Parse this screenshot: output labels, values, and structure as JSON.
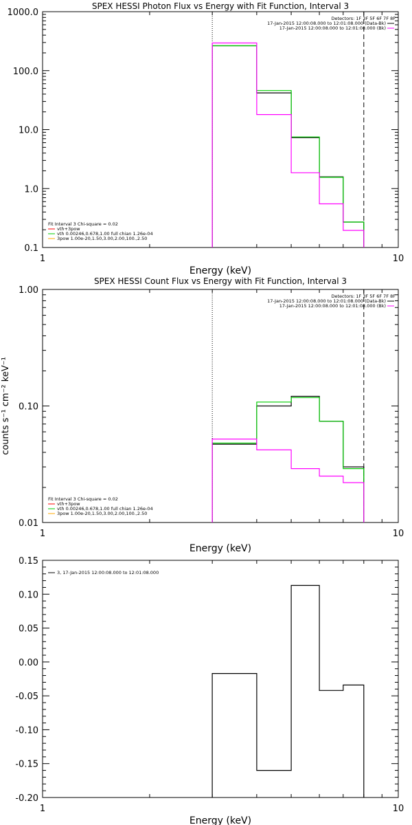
{
  "chart_data": [
    {
      "type": "line",
      "title": "SPEX HESSI Photon Flux vs Energy with Fit Function, Interval 3",
      "xlabel": "Energy (keV)",
      "ylabel": "",
      "xscale": "log",
      "yscale": "log",
      "xlim": [
        1,
        10
      ],
      "ylim": [
        0.1,
        1000
      ],
      "x_tick_labels": [
        "1",
        "10"
      ],
      "y_tick_labels": [
        "1000.0",
        "100.0",
        "10.0",
        "1.0",
        "0.1"
      ],
      "legend_tr": {
        "header": "Detectors: 1F 3F 5F 6F 7F 8F",
        "entries": [
          {
            "text": "17-Jan-2015 12:00:08.000 to 12:01:08.000 (Data-Bk)",
            "color": "#000000"
          },
          {
            "text": "17-Jan-2015 12:00:08.000 to 12:01:08.000 (Bk)",
            "color": "#ff00ff"
          }
        ]
      },
      "legend_bl": {
        "header": "Fit Interval 3   Chi-square = 0.02",
        "entries": [
          {
            "text": "vth+3pow",
            "color": "#ff0000"
          },
          {
            "text": "vth 0.00246,0.678,1.00  full chian 1.26e-04",
            "color": "#00cc00"
          },
          {
            "text": "3pow 1.00e-20,1.50,3.00,2.00,100.,2.50",
            "color": "#ffaa00"
          }
        ]
      },
      "markers": [
        {
          "x": 3.0,
          "style": "dotted"
        },
        {
          "x": 8.0,
          "style": "dashed"
        }
      ],
      "bin_edges": [
        3,
        4,
        5,
        6,
        7,
        8
      ],
      "series": [
        {
          "color": "#000000",
          "values": [
            265,
            42,
            7.3,
            1.58,
            0.27
          ]
        },
        {
          "color": "#00cc00",
          "values": [
            265,
            46,
            7.5,
            1.55,
            0.27
          ]
        },
        {
          "color": "#ff00ff",
          "values": [
            295,
            18,
            1.85,
            0.55,
            0.195
          ]
        }
      ]
    },
    {
      "type": "line",
      "title": "SPEX HESSI Count Flux vs Energy with Fit Function, Interval 3",
      "xlabel": "Energy (keV)",
      "ylabel": "counts s⁻¹ cm⁻² keV⁻¹",
      "xscale": "log",
      "yscale": "log",
      "xlim": [
        1,
        10
      ],
      "ylim": [
        0.01,
        1.0
      ],
      "x_tick_labels": [
        "1",
        "10"
      ],
      "y_tick_labels": [
        "1.00",
        "0.10",
        "0.01"
      ],
      "legend_tr": {
        "header": "Detectors: 1F 3F 5F 6F 7F 8F",
        "entries": [
          {
            "text": "17-Jan-2015 12:00:08.000 to 12:01:08.000 (Data-Bk)",
            "color": "#000000"
          },
          {
            "text": "17-Jan-2015 12:00:08.000 to 12:01:08.000 (Bk)",
            "color": "#ff00ff"
          }
        ]
      },
      "legend_bl": {
        "header": "Fit Interval 3   Chi-square = 0.02",
        "entries": [
          {
            "text": "vth+3pow",
            "color": "#ff0000"
          },
          {
            "text": "vth 0.00246,0.678,1.00  full chian 1.26e-04",
            "color": "#00cc00"
          },
          {
            "text": "3pow 1.00e-20,1.50,3.00,2.00,100.,2.50",
            "color": "#ffaa00"
          }
        ]
      },
      "markers": [
        {
          "x": 3.0,
          "style": "dotted"
        },
        {
          "x": 8.0,
          "style": "dashed"
        }
      ],
      "bin_edges": [
        3,
        4,
        5,
        6,
        7,
        8
      ],
      "series": [
        {
          "color": "#000000",
          "values": [
            0.047,
            0.1,
            0.121,
            0.074,
            0.03
          ]
        },
        {
          "color": "#00cc00",
          "values": [
            0.048,
            0.108,
            0.118,
            0.074,
            0.029
          ]
        },
        {
          "color": "#ff00ff",
          "values": [
            0.052,
            0.042,
            0.029,
            0.025,
            0.022
          ]
        }
      ]
    },
    {
      "type": "line",
      "title": "",
      "xlabel": "Energy (keV)",
      "ylabel": "",
      "xscale": "log",
      "yscale": "linear",
      "xlim": [
        1,
        10
      ],
      "ylim": [
        -0.2,
        0.15
      ],
      "x_tick_labels": [
        "1",
        "10"
      ],
      "y_ticks": [
        0.15,
        0.1,
        0.05,
        0.0,
        -0.05,
        -0.1,
        -0.15,
        -0.2
      ],
      "y_tick_labels": [
        "0.15",
        "0.10",
        "0.05",
        "0.00",
        "-0.05",
        "-0.10",
        "-0.15",
        "-0.20"
      ],
      "legend_tl": {
        "entries": [
          {
            "text": "3, 17-Jan-2015 12:00:08.000 to 12:01:08.000",
            "color": "#000000"
          }
        ]
      },
      "bin_edges": [
        3,
        4,
        5,
        6,
        7,
        8
      ],
      "series": [
        {
          "color": "#000000",
          "values": [
            -0.017,
            -0.16,
            0.113,
            -0.042,
            -0.034
          ]
        }
      ]
    }
  ]
}
